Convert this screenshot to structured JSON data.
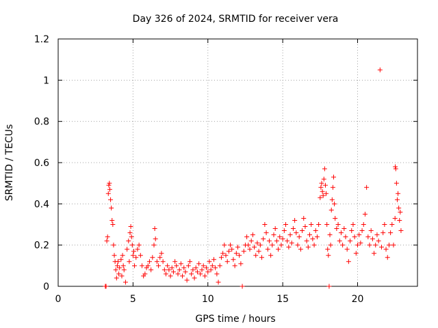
{
  "chart_data": {
    "type": "scatter",
    "title": "Day 326 of 2024, SRMTID for receiver vera",
    "xlabel": "GPS time / hours",
    "ylabel": "SRMTID / TECUs",
    "xlim": [
      0,
      24
    ],
    "ylim": [
      0,
      1.2
    ],
    "x_ticks": [
      0,
      5,
      10,
      15,
      20
    ],
    "x_tick_labels": [
      "0",
      "5",
      "10",
      "15",
      "20"
    ],
    "y_ticks": [
      0,
      0.2,
      0.4,
      0.6,
      0.8,
      1.0,
      1.2
    ],
    "y_tick_labels": [
      "0",
      "0.2",
      "0.4",
      "0.6",
      "0.8",
      "1",
      "1.2"
    ],
    "grid": true,
    "marker": "+",
    "series_color": "#ff0000",
    "series": [
      {
        "name": "SRMTID",
        "points": [
          [
            3.15,
            0.0
          ],
          [
            3.2,
            0.0
          ],
          [
            3.25,
            0.22
          ],
          [
            3.3,
            0.24
          ],
          [
            3.35,
            0.45
          ],
          [
            3.38,
            0.49
          ],
          [
            3.42,
            0.5
          ],
          [
            3.45,
            0.47
          ],
          [
            3.5,
            0.42
          ],
          [
            3.55,
            0.38
          ],
          [
            3.6,
            0.32
          ],
          [
            3.65,
            0.3
          ],
          [
            3.7,
            0.2
          ],
          [
            3.75,
            0.15
          ],
          [
            3.8,
            0.12
          ],
          [
            3.85,
            0.08
          ],
          [
            3.9,
            0.04
          ],
          [
            3.95,
            0.1
          ],
          [
            4.0,
            0.12
          ],
          [
            4.05,
            0.06
          ],
          [
            4.1,
            0.09
          ],
          [
            4.2,
            0.13
          ],
          [
            4.25,
            0.05
          ],
          [
            4.3,
            0.15
          ],
          [
            4.35,
            0.1
          ],
          [
            4.4,
            0.08
          ],
          [
            4.5,
            0.02
          ],
          [
            4.6,
            0.18
          ],
          [
            4.7,
            0.22
          ],
          [
            4.75,
            0.12
          ],
          [
            4.8,
            0.26
          ],
          [
            4.85,
            0.29
          ],
          [
            4.9,
            0.24
          ],
          [
            4.95,
            0.2
          ],
          [
            5.0,
            0.15
          ],
          [
            5.05,
            0.17
          ],
          [
            5.1,
            0.1
          ],
          [
            5.2,
            0.14
          ],
          [
            5.3,
            0.18
          ],
          [
            5.4,
            0.2
          ],
          [
            5.5,
            0.15
          ],
          [
            5.6,
            0.1
          ],
          [
            5.7,
            0.05
          ],
          [
            5.8,
            0.06
          ],
          [
            5.9,
            0.09
          ],
          [
            6.0,
            0.1
          ],
          [
            6.1,
            0.12
          ],
          [
            6.2,
            0.08
          ],
          [
            6.3,
            0.14
          ],
          [
            6.4,
            0.2
          ],
          [
            6.45,
            0.28
          ],
          [
            6.5,
            0.23
          ],
          [
            6.6,
            0.12
          ],
          [
            6.7,
            0.1
          ],
          [
            6.8,
            0.14
          ],
          [
            6.9,
            0.16
          ],
          [
            7.0,
            0.12
          ],
          [
            7.1,
            0.08
          ],
          [
            7.2,
            0.06
          ],
          [
            7.3,
            0.1
          ],
          [
            7.4,
            0.08
          ],
          [
            7.5,
            0.05
          ],
          [
            7.6,
            0.09
          ],
          [
            7.7,
            0.07
          ],
          [
            7.8,
            0.12
          ],
          [
            7.9,
            0.1
          ],
          [
            8.0,
            0.06
          ],
          [
            8.1,
            0.08
          ],
          [
            8.2,
            0.11
          ],
          [
            8.3,
            0.05
          ],
          [
            8.4,
            0.09
          ],
          [
            8.5,
            0.07
          ],
          [
            8.6,
            0.03
          ],
          [
            8.7,
            0.1
          ],
          [
            8.8,
            0.12
          ],
          [
            8.9,
            0.06
          ],
          [
            9.0,
            0.08
          ],
          [
            9.1,
            0.04
          ],
          [
            9.2,
            0.09
          ],
          [
            9.3,
            0.07
          ],
          [
            9.4,
            0.11
          ],
          [
            9.5,
            0.06
          ],
          [
            9.6,
            0.08
          ],
          [
            9.7,
            0.1
          ],
          [
            9.8,
            0.05
          ],
          [
            9.9,
            0.09
          ],
          [
            10.0,
            0.07
          ],
          [
            10.1,
            0.12
          ],
          [
            10.2,
            0.08
          ],
          [
            10.3,
            0.1
          ],
          [
            10.4,
            0.13
          ],
          [
            10.5,
            0.09
          ],
          [
            10.6,
            0.06
          ],
          [
            10.7,
            0.02
          ],
          [
            10.8,
            0.1
          ],
          [
            10.9,
            0.14
          ],
          [
            11.0,
            0.16
          ],
          [
            11.1,
            0.2
          ],
          [
            11.2,
            0.15
          ],
          [
            11.3,
            0.12
          ],
          [
            11.4,
            0.17
          ],
          [
            11.5,
            0.2
          ],
          [
            11.6,
            0.18
          ],
          [
            11.7,
            0.13
          ],
          [
            11.8,
            0.1
          ],
          [
            11.9,
            0.16
          ],
          [
            12.0,
            0.19
          ],
          [
            12.1,
            0.15
          ],
          [
            12.2,
            0.11
          ],
          [
            12.3,
            0.0
          ],
          [
            12.4,
            0.17
          ],
          [
            12.5,
            0.2
          ],
          [
            12.6,
            0.24
          ],
          [
            12.7,
            0.2
          ],
          [
            12.8,
            0.18
          ],
          [
            12.9,
            0.22
          ],
          [
            13.0,
            0.25
          ],
          [
            13.1,
            0.19
          ],
          [
            13.2,
            0.15
          ],
          [
            13.3,
            0.21
          ],
          [
            13.4,
            0.17
          ],
          [
            13.5,
            0.2
          ],
          [
            13.6,
            0.14
          ],
          [
            13.7,
            0.23
          ],
          [
            13.8,
            0.3
          ],
          [
            13.9,
            0.26
          ],
          [
            14.0,
            0.18
          ],
          [
            14.1,
            0.22
          ],
          [
            14.2,
            0.15
          ],
          [
            14.3,
            0.2
          ],
          [
            14.4,
            0.25
          ],
          [
            14.5,
            0.28
          ],
          [
            14.6,
            0.22
          ],
          [
            14.7,
            0.18
          ],
          [
            14.8,
            0.24
          ],
          [
            14.9,
            0.2
          ],
          [
            15.0,
            0.23
          ],
          [
            15.1,
            0.27
          ],
          [
            15.2,
            0.3
          ],
          [
            15.3,
            0.22
          ],
          [
            15.4,
            0.19
          ],
          [
            15.5,
            0.25
          ],
          [
            15.6,
            0.21
          ],
          [
            15.7,
            0.28
          ],
          [
            15.8,
            0.32
          ],
          [
            15.9,
            0.26
          ],
          [
            16.0,
            0.2
          ],
          [
            16.1,
            0.24
          ],
          [
            16.2,
            0.18
          ],
          [
            16.3,
            0.27
          ],
          [
            16.4,
            0.33
          ],
          [
            16.5,
            0.29
          ],
          [
            16.6,
            0.22
          ],
          [
            16.7,
            0.19
          ],
          [
            16.8,
            0.25
          ],
          [
            16.9,
            0.3
          ],
          [
            17.0,
            0.23
          ],
          [
            17.1,
            0.2
          ],
          [
            17.2,
            0.27
          ],
          [
            17.3,
            0.24
          ],
          [
            17.4,
            0.3
          ],
          [
            17.5,
            0.43
          ],
          [
            17.55,
            0.48
          ],
          [
            17.6,
            0.5
          ],
          [
            17.65,
            0.46
          ],
          [
            17.7,
            0.44
          ],
          [
            17.75,
            0.52
          ],
          [
            17.8,
            0.57
          ],
          [
            17.85,
            0.49
          ],
          [
            17.9,
            0.45
          ],
          [
            17.95,
            0.3
          ],
          [
            18.0,
            0.18
          ],
          [
            18.05,
            0.15
          ],
          [
            18.1,
            0.0
          ],
          [
            18.15,
            0.25
          ],
          [
            18.2,
            0.2
          ],
          [
            18.25,
            0.37
          ],
          [
            18.3,
            0.42
          ],
          [
            18.35,
            0.48
          ],
          [
            18.4,
            0.53
          ],
          [
            18.45,
            0.4
          ],
          [
            18.5,
            0.33
          ],
          [
            18.6,
            0.28
          ],
          [
            18.7,
            0.3
          ],
          [
            18.8,
            0.22
          ],
          [
            18.9,
            0.26
          ],
          [
            19.0,
            0.2
          ],
          [
            19.1,
            0.28
          ],
          [
            19.2,
            0.24
          ],
          [
            19.3,
            0.18
          ],
          [
            19.4,
            0.12
          ],
          [
            19.5,
            0.22
          ],
          [
            19.6,
            0.27
          ],
          [
            19.7,
            0.3
          ],
          [
            19.8,
            0.24
          ],
          [
            19.9,
            0.16
          ],
          [
            20.0,
            0.2
          ],
          [
            20.1,
            0.25
          ],
          [
            20.2,
            0.21
          ],
          [
            20.3,
            0.27
          ],
          [
            20.4,
            0.3
          ],
          [
            20.5,
            0.35
          ],
          [
            20.6,
            0.48
          ],
          [
            20.7,
            0.24
          ],
          [
            20.8,
            0.2
          ],
          [
            20.9,
            0.27
          ],
          [
            21.0,
            0.23
          ],
          [
            21.1,
            0.16
          ],
          [
            21.2,
            0.2
          ],
          [
            21.3,
            0.25
          ],
          [
            21.4,
            0.22
          ],
          [
            21.5,
            1.05
          ],
          [
            21.6,
            0.19
          ],
          [
            21.7,
            0.26
          ],
          [
            21.8,
            0.3
          ],
          [
            21.9,
            0.18
          ],
          [
            22.0,
            0.14
          ],
          [
            22.1,
            0.2
          ],
          [
            22.2,
            0.26
          ],
          [
            22.3,
            0.3
          ],
          [
            22.4,
            0.2
          ],
          [
            22.5,
            0.33
          ],
          [
            22.52,
            0.58
          ],
          [
            22.55,
            0.57
          ],
          [
            22.6,
            0.5
          ],
          [
            22.65,
            0.42
          ],
          [
            22.7,
            0.45
          ],
          [
            22.75,
            0.38
          ],
          [
            22.8,
            0.32
          ],
          [
            22.85,
            0.36
          ],
          [
            22.9,
            0.27
          ]
        ]
      }
    ]
  }
}
